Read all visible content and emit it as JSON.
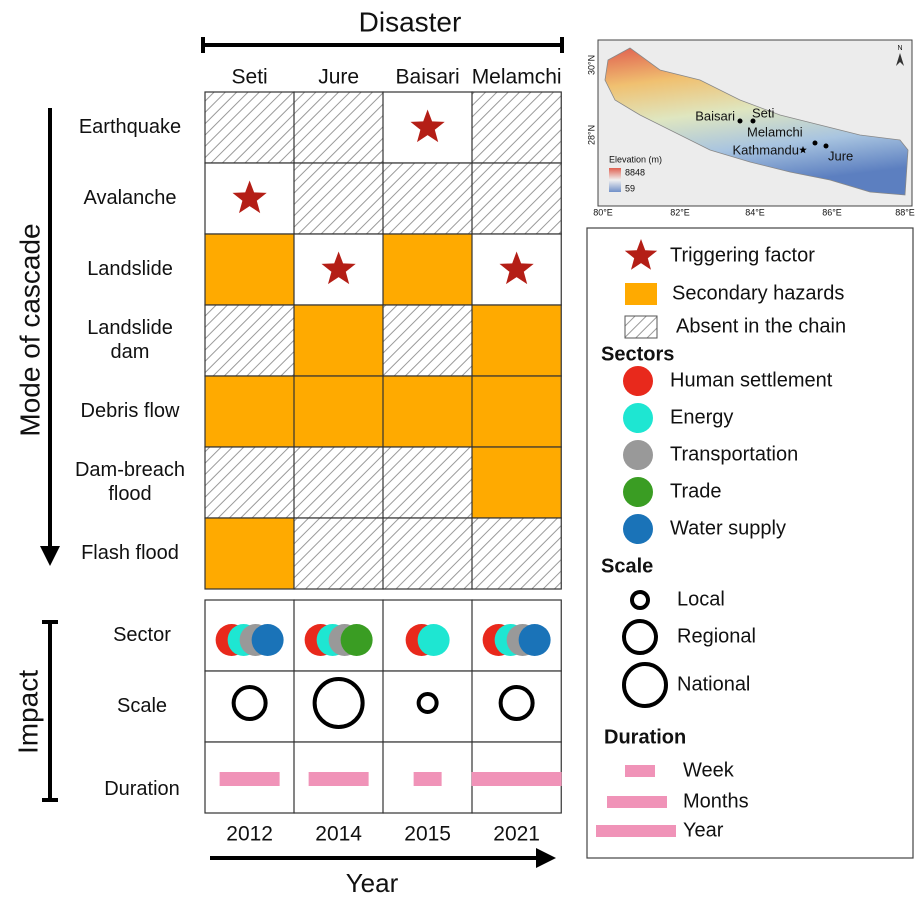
{
  "header": {
    "title": "Disaster"
  },
  "disasters": [
    "Seti",
    "Jure",
    "Baisari",
    "Melamchi"
  ],
  "years": [
    "2012",
    "2014",
    "2015",
    "2021"
  ],
  "x_axis_label": "Year",
  "cascade": {
    "label": "Mode of cascade",
    "rows": [
      {
        "label": [
          "Earthquake"
        ],
        "cells": [
          2,
          2,
          0,
          2
        ]
      },
      {
        "label": [
          "Avalanche"
        ],
        "cells": [
          0,
          2,
          2,
          2
        ]
      },
      {
        "label": [
          "Landslide"
        ],
        "cells": [
          1,
          0,
          1,
          0
        ]
      },
      {
        "label": [
          "Landslide",
          "dam"
        ],
        "cells": [
          2,
          1,
          2,
          1
        ]
      },
      {
        "label": [
          "Debris flow"
        ],
        "cells": [
          1,
          1,
          1,
          1
        ]
      },
      {
        "label": [
          "Dam-breach",
          "flood"
        ],
        "cells": [
          2,
          2,
          2,
          1
        ]
      },
      {
        "label": [
          "Flash flood"
        ],
        "cells": [
          1,
          2,
          2,
          2
        ]
      }
    ]
  },
  "impact": {
    "label": "Impact",
    "sector": {
      "label": "Sector",
      "cells": [
        [
          0,
          1,
          2,
          4
        ],
        [
          0,
          1,
          2,
          3
        ],
        [
          0,
          1
        ],
        [
          0,
          1,
          2,
          4
        ]
      ]
    },
    "scale": {
      "label": "Scale",
      "cells": [
        1,
        2,
        0,
        1
      ]
    },
    "duration": {
      "label": "Duration",
      "cells": [
        1,
        1,
        0,
        2
      ]
    }
  },
  "legend": {
    "items": [
      {
        "label": "Triggering factor",
        "color": "#b41e16"
      },
      {
        "label": "Secondary hazards",
        "color": "#ffaa00"
      },
      {
        "label": "Absent in the chain",
        "color": "#999999"
      }
    ],
    "sectors": {
      "title": "Sectors",
      "items": [
        {
          "label": "Human settlement",
          "color": "#e8291c"
        },
        {
          "label": "Energy",
          "color": "#1ee6d2"
        },
        {
          "label": "Transportation",
          "color": "#999999"
        },
        {
          "label": "Trade",
          "color": "#3a9d23"
        },
        {
          "label": "Water supply",
          "color": "#1a73b8"
        }
      ]
    },
    "scale": {
      "title": "Scale",
      "items": [
        "Local",
        "Regional",
        "National"
      ]
    },
    "duration": {
      "title": "Duration",
      "color": "#f093b8",
      "items": [
        "Week",
        "Months",
        "Year"
      ]
    }
  },
  "map": {
    "lat_labels": [
      "30°N",
      "28°N"
    ],
    "lon_labels": [
      "80°E",
      "82°E",
      "84°E",
      "86°E",
      "88°E"
    ],
    "legend_title": "Elevation (m)",
    "legend_max": "8848",
    "legend_min": "59",
    "north": "N",
    "places": [
      "Baisari",
      "Seti",
      "Melamchi",
      "Kathmandu",
      "Jure"
    ]
  }
}
